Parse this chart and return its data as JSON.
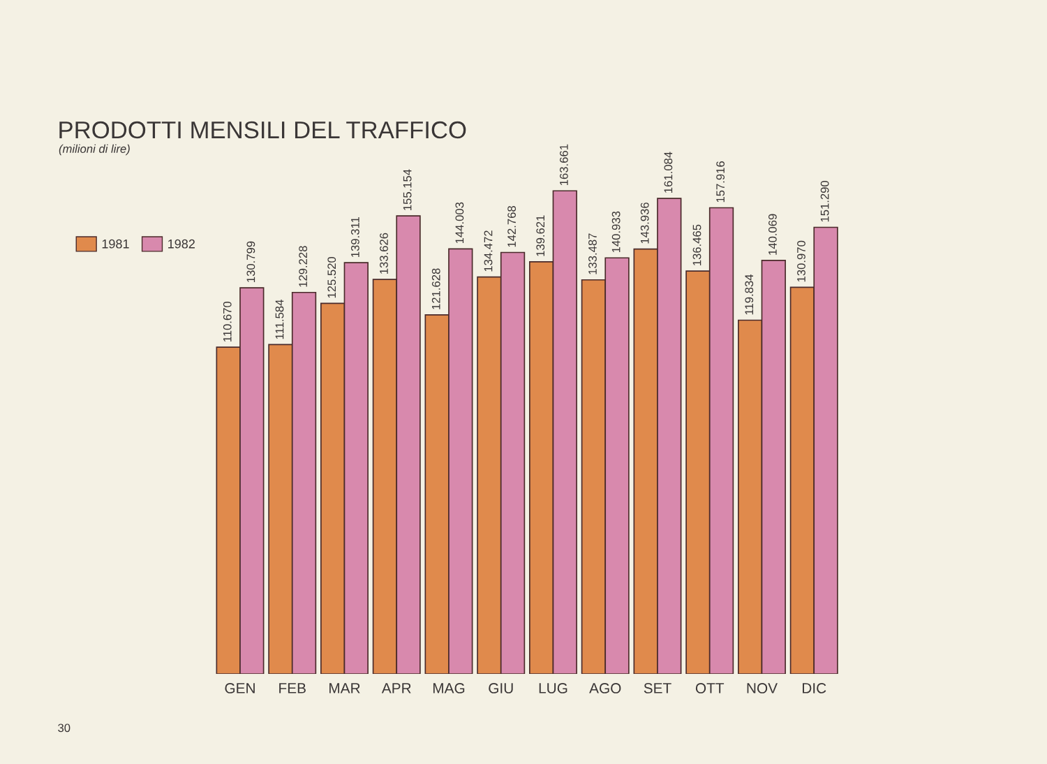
{
  "chart_data": {
    "type": "bar",
    "title": "PRODOTTI MENSILI DEL TRAFFICO",
    "subtitle": "(milioni di lire)",
    "categories": [
      "GEN",
      "FEB",
      "MAR",
      "APR",
      "MAG",
      "GIU",
      "LUG",
      "AGO",
      "SET",
      "OTT",
      "NOV",
      "DIC"
    ],
    "series": [
      {
        "name": "1981",
        "color": "#e08a4c",
        "values": [
          110670,
          111584,
          125520,
          133626,
          121628,
          134472,
          139621,
          133487,
          143936,
          136465,
          119834,
          130970
        ],
        "value_labels": [
          "110.670",
          "111.584",
          "125.520",
          "133.626",
          "121.628",
          "134.472",
          "139.621",
          "133.487",
          "143.936",
          "136.465",
          "119.834",
          "130.970"
        ]
      },
      {
        "name": "1982",
        "color": "#d889ad",
        "values": [
          130799,
          129228,
          139311,
          155154,
          144003,
          142768,
          163661,
          140933,
          161084,
          157916,
          140069,
          151290
        ],
        "value_labels": [
          "130.799",
          "129.228",
          "139.311",
          "155.154",
          "144.003",
          "142.768",
          "163.661",
          "140.933",
          "161.084",
          "157.916",
          "140.069",
          "151.290"
        ]
      }
    ],
    "legend": "top left",
    "tick_labels": "x",
    "annotations": [
      "30"
    ]
  }
}
